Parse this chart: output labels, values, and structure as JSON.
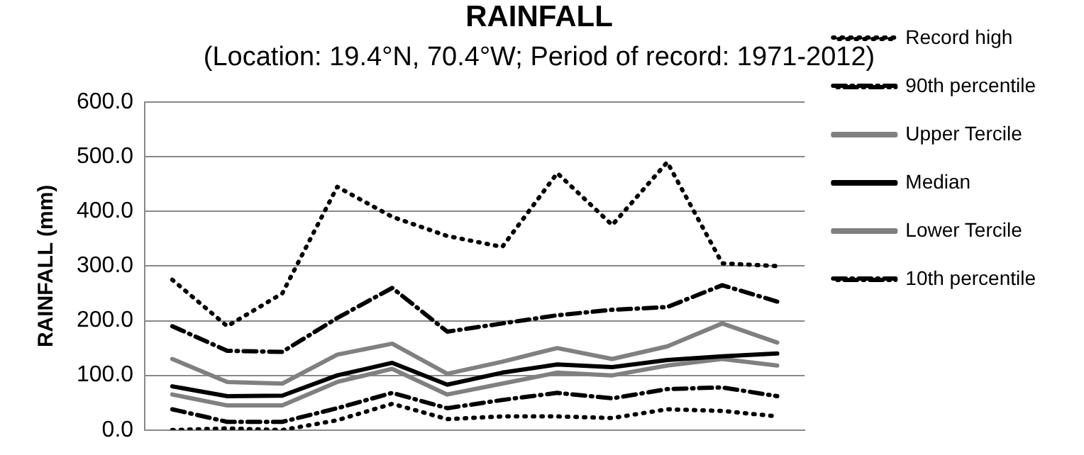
{
  "chart_data": {
    "type": "line",
    "title": "RAINFALL",
    "subtitle": "(Location: 19.4°N, 70.4°W; Period of record: 1971-2012)",
    "ylabel": "RAINFALL (mm)",
    "categories": [
      null,
      null,
      null,
      null,
      null,
      null,
      null,
      null,
      null,
      null,
      null,
      null
    ],
    "ylim": [
      0,
      600
    ],
    "yticks": [
      {
        "value": 0,
        "label": "0.0"
      },
      {
        "value": 100,
        "label": "100.0"
      },
      {
        "value": 200,
        "label": "200.0"
      },
      {
        "value": 300,
        "label": "300.0"
      },
      {
        "value": 400,
        "label": "400.0"
      },
      {
        "value": 500,
        "label": "500.0"
      },
      {
        "value": 600,
        "label": "600.0"
      }
    ],
    "grid": "y",
    "legend": "right",
    "marker": "none",
    "tick_labels": "y",
    "series": [
      {
        "name": "Record high",
        "color": "#000000",
        "line_style": "dotted",
        "values": [
          275,
          190,
          250,
          445,
          390,
          355,
          335,
          470,
          375,
          490,
          305,
          300
        ]
      },
      {
        "name": "90th percentile",
        "color": "#000000",
        "line_style": "dashdot",
        "values": [
          190,
          145,
          143,
          205,
          260,
          180,
          195,
          210,
          220,
          225,
          265,
          235
        ]
      },
      {
        "name": "Upper Tercile",
        "color": "#808080",
        "line_style": "solid",
        "values": [
          130,
          88,
          85,
          138,
          158,
          103,
          125,
          150,
          130,
          153,
          195,
          160
        ]
      },
      {
        "name": "Median",
        "color": "#000000",
        "line_style": "solid",
        "values": [
          80,
          62,
          63,
          100,
          123,
          83,
          105,
          120,
          115,
          128,
          135,
          140
        ]
      },
      {
        "name": "Lower Tercile",
        "color": "#808080",
        "line_style": "solid",
        "values": [
          65,
          45,
          45,
          88,
          112,
          65,
          85,
          105,
          100,
          118,
          130,
          118
        ]
      },
      {
        "name": "10th percentile",
        "color": "#000000",
        "line_style": "dashdot",
        "values": [
          38,
          15,
          15,
          40,
          68,
          40,
          55,
          68,
          58,
          75,
          78,
          62
        ]
      },
      {
        "color": "#000000",
        "line_style": "dotted",
        "values": [
          0,
          3,
          0,
          18,
          48,
          20,
          25,
          25,
          22,
          38,
          35,
          25
        ]
      }
    ]
  }
}
